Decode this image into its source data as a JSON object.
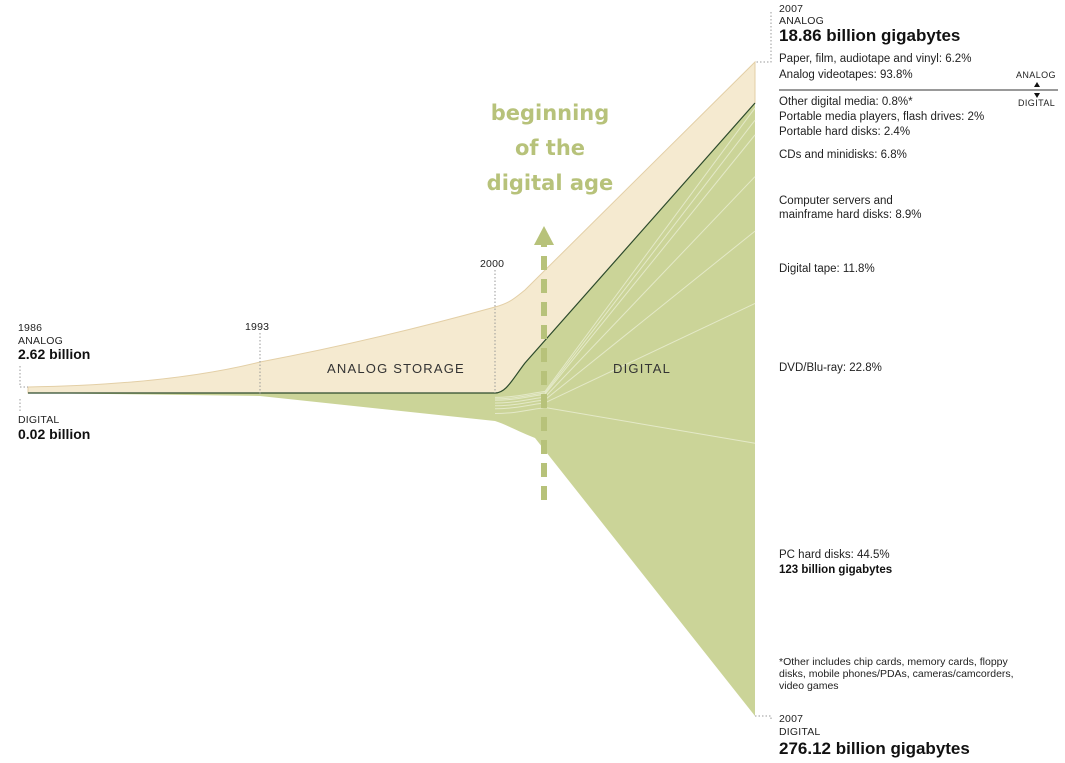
{
  "chart_data": {
    "type": "area",
    "title": "",
    "x": [
      1986,
      1993,
      2000,
      2007
    ],
    "series": [
      {
        "name": "ANALOG",
        "unit": "billion gigabytes",
        "values": [
          2.62,
          null,
          null,
          18.86
        ]
      },
      {
        "name": "DIGITAL",
        "unit": "billion gigabytes",
        "values": [
          0.02,
          null,
          null,
          276.12
        ]
      }
    ],
    "year_labels": [
      "1986",
      "1993",
      "2000",
      "2007"
    ],
    "start": {
      "year": "1986",
      "analog_label": "ANALOG",
      "analog_value": "2.62 billion",
      "digital_label": "DIGITAL",
      "digital_value": "0.02 billion"
    },
    "region_labels": {
      "analog": "ANALOG STORAGE",
      "digital": "DIGITAL"
    },
    "annotation": {
      "lines": [
        "beginning",
        "of the",
        "digital age"
      ]
    },
    "end_analog": {
      "year": "2007",
      "label": "ANALOG",
      "value": "18.86 billion gigabytes",
      "breakdown": [
        {
          "label": "Paper, film, audiotape and vinyl: 6.2%",
          "share": 6.2
        },
        {
          "label": "Analog videotapes: 93.8%",
          "share": 93.8
        }
      ]
    },
    "end_digital": {
      "year": "2007",
      "label": "DIGITAL",
      "value": "276.12 billion gigabytes",
      "breakdown": [
        {
          "label": "Other digital media: 0.8%*",
          "share": 0.8
        },
        {
          "label": "Portable media players, flash drives: 2%",
          "share": 2
        },
        {
          "label": "Portable hard disks: 2.4%",
          "share": 2.4
        },
        {
          "label": "CDs and minidisks: 6.8%",
          "share": 6.8
        },
        {
          "label": "Computer servers and\nmainframe hard disks: 8.9%",
          "share": 8.9
        },
        {
          "label": "Digital tape: 11.8%",
          "share": 11.8
        },
        {
          "label": "DVD/Blu-ray: 22.8%",
          "share": 22.8
        },
        {
          "label": "PC hard disks: 44.5%",
          "share": 44.5,
          "sub_value": "123 billion gigabytes"
        }
      ]
    },
    "divider": {
      "top_label": "ANALOG",
      "bottom_label": "DIGITAL"
    },
    "footnote": "*Other includes chip cards, memory cards, floppy disks, mobile phones/PDAs, cameras/camcorders, video games",
    "colors": {
      "analog_fill": "#f5ead0",
      "analog_edge": "#e3cfa6",
      "digital_fill": "#cbd498",
      "digital_lines": "#e4e9c8",
      "boundary": "#2c4a2c",
      "annotation": "#b7c27a"
    }
  }
}
